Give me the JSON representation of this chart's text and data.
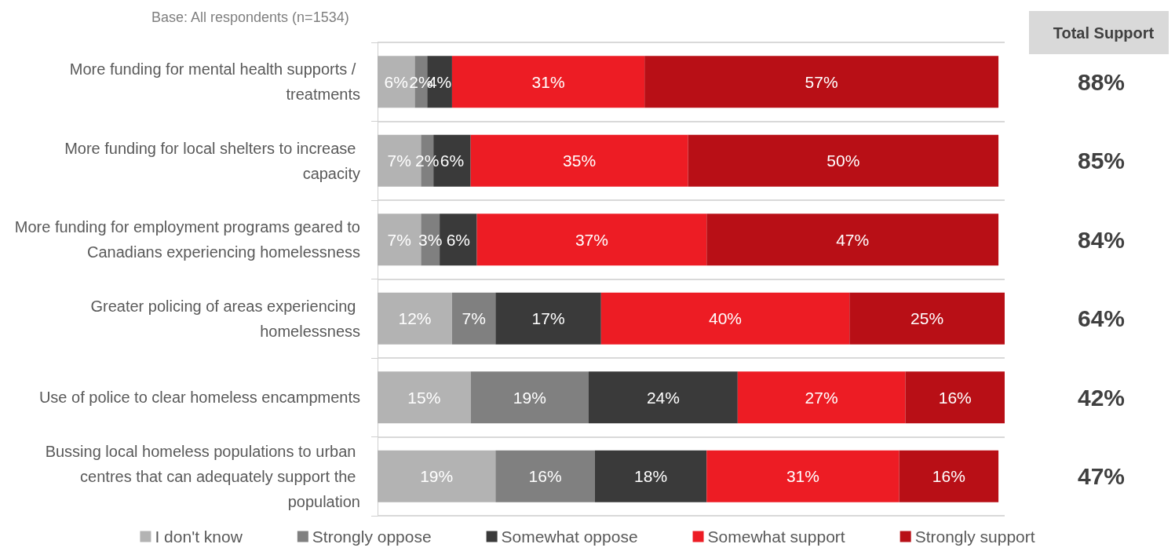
{
  "chart_data": {
    "type": "bar",
    "orientation": "horizontal",
    "stacked": true,
    "subtitle": "Base: All respondents (n=1534)",
    "categories": [
      "More funding for mental health supports / treatments",
      "More funding for local shelters to increase capacity",
      "More funding for employment programs geared to Canadians experiencing homelessness",
      "Greater policing of areas experiencing homelessness",
      "Use of police to clear homeless encampments",
      "Bussing local homeless populations to urban centres that can adequately support the population"
    ],
    "series": [
      {
        "name": "I don't know",
        "color": "#b3b3b3",
        "values": [
          6,
          7,
          7,
          12,
          15,
          19
        ],
        "value_labels": [
          "6%",
          "7%",
          "7%",
          "12%",
          "15%",
          "19%"
        ]
      },
      {
        "name": "Strongly oppose",
        "color": "#808080",
        "values": [
          2,
          2,
          3,
          7,
          19,
          16
        ],
        "value_labels": [
          "2%",
          "2%",
          "3%",
          "7%",
          "19%",
          "16%"
        ]
      },
      {
        "name": "Somewhat oppose",
        "color": "#3a3a3a",
        "values": [
          4,
          6,
          6,
          17,
          24,
          18
        ],
        "value_labels": [
          "4%",
          "6%",
          "6%",
          "17%",
          "24%",
          "18%"
        ]
      },
      {
        "name": "Somewhat support",
        "color": "#ed1c24",
        "values": [
          31,
          35,
          37,
          40,
          27,
          31
        ],
        "value_labels": [
          "31%",
          "35%",
          "37%",
          "40%",
          "27%",
          "31%"
        ]
      },
      {
        "name": "Strongly support",
        "color": "#b80f16",
        "values": [
          57,
          50,
          47,
          25,
          16,
          16
        ],
        "value_labels": [
          "57%",
          "50%",
          "47%",
          "25%",
          "16%",
          "16%"
        ]
      }
    ],
    "annotations": [
      "Total Support",
      "88%",
      "85%",
      "84%",
      "64%",
      "42%",
      "47%"
    ],
    "grid": "y",
    "legend": "bottom"
  }
}
